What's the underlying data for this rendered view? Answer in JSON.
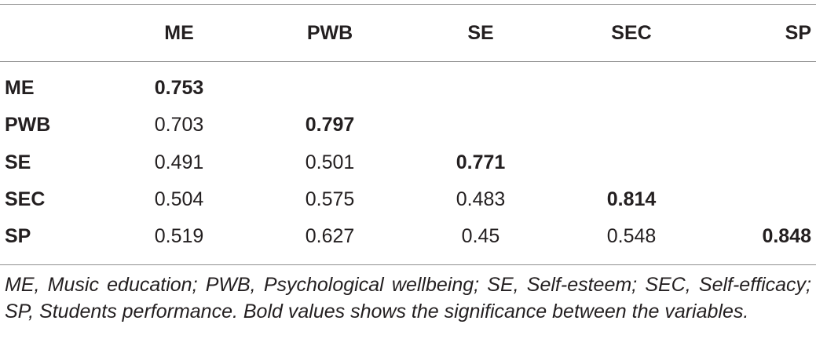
{
  "table": {
    "columns": [
      "",
      "ME",
      "PWB",
      "SE",
      "SEC",
      "SP"
    ],
    "rows": [
      {
        "label": "ME",
        "values": [
          "0.753",
          "",
          "",
          "",
          ""
        ]
      },
      {
        "label": "PWB",
        "values": [
          "0.703",
          "0.797",
          "",
          "",
          ""
        ]
      },
      {
        "label": "SE",
        "values": [
          "0.491",
          "0.501",
          "0.771",
          "",
          ""
        ]
      },
      {
        "label": "SEC",
        "values": [
          "0.504",
          "0.575",
          "0.483",
          "0.814",
          ""
        ]
      },
      {
        "label": "SP",
        "values": [
          "0.519",
          "0.627",
          "0.45",
          "0.548",
          "0.848"
        ]
      }
    ],
    "bold_diagonal": true
  },
  "footnote": "ME, Music education; PWB, Psychological wellbeing; SE, Self-esteem; SEC, Self-efficacy; SP, Students performance. Bold values shows the significance between the variables."
}
